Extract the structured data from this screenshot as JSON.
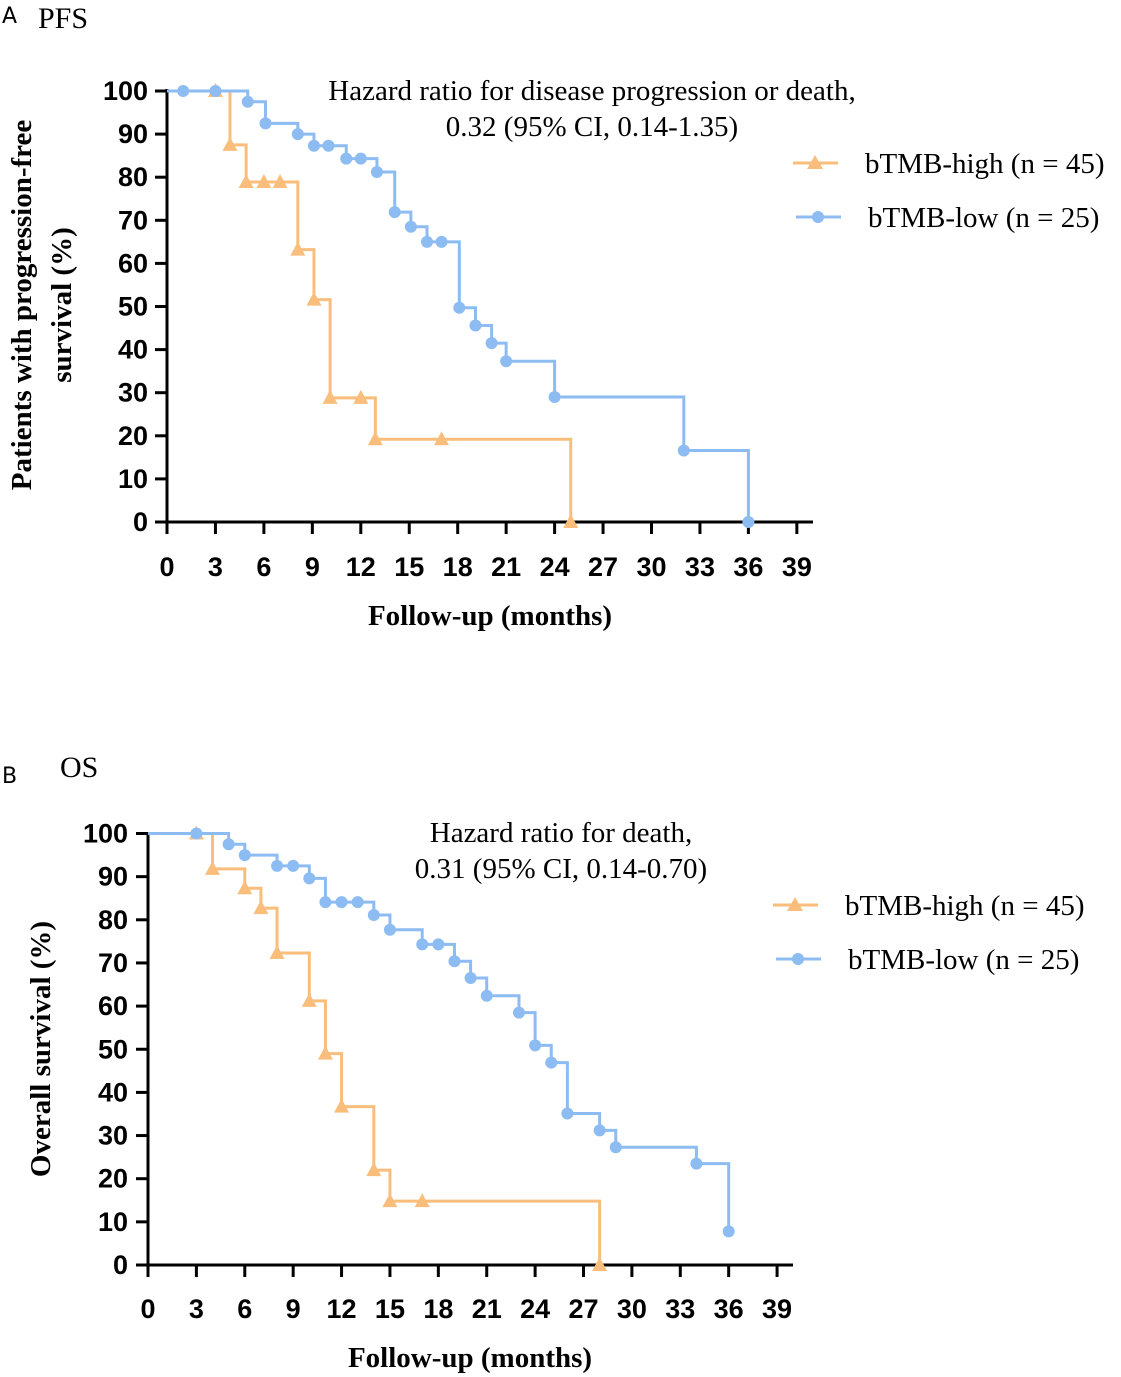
{
  "colors": {
    "high": "#F9BE7C",
    "low": "#8DBCF2",
    "axis": "#000000"
  },
  "chart_data": [
    {
      "type": "line",
      "subtype": "kaplan-meier",
      "panel_letter": "A",
      "title": "PFS",
      "xlabel": "Follow-up (months)",
      "ylabel": [
        "Patients with progression-free",
        "survival (%)"
      ],
      "xlim": [
        0,
        40
      ],
      "ylim": [
        0,
        100
      ],
      "xticks": [
        0,
        3,
        6,
        9,
        12,
        15,
        18,
        21,
        24,
        27,
        30,
        33,
        36,
        39
      ],
      "yticks": [
        0,
        10,
        20,
        30,
        40,
        50,
        60,
        70,
        80,
        90,
        100
      ],
      "annotation": [
        "Hazard ratio for disease progression or death,",
        "0.32 (95% CI, 0.14-1.35)"
      ],
      "series": [
        {
          "name": "bTMB-high (n = 45)",
          "color_key": "high",
          "marker": "triangle",
          "steps": [
            [
              0,
              100
            ],
            [
              3.9,
              87.5
            ],
            [
              4.9,
              78.9
            ],
            [
              8.1,
              63.2
            ],
            [
              9.1,
              51.6
            ],
            [
              10.1,
              28.8
            ],
            [
              12.9,
              19.2
            ],
            [
              25,
              0
            ]
          ],
          "censor": [
            [
              3,
              100
            ],
            [
              3.9,
              87.5
            ],
            [
              4.9,
              78.9
            ],
            [
              6,
              78.9
            ],
            [
              7,
              78.9
            ],
            [
              8.1,
              63.2
            ],
            [
              9.1,
              51.6
            ],
            [
              10.1,
              28.8
            ],
            [
              12,
              28.8
            ],
            [
              12.9,
              19.2
            ],
            [
              17,
              19.2
            ],
            [
              25,
              0
            ]
          ]
        },
        {
          "name": "bTMB-low (n = 25)",
          "color_key": "low",
          "marker": "circle",
          "steps": [
            [
              0,
              100
            ],
            [
              5,
              97.5
            ],
            [
              6.1,
              92.5
            ],
            [
              8.1,
              90
            ],
            [
              9.1,
              87.3
            ],
            [
              11.1,
              84.3
            ],
            [
              13,
              81.2
            ],
            [
              14.1,
              71.9
            ],
            [
              15.1,
              68.5
            ],
            [
              16.1,
              65
            ],
            [
              18.1,
              49.7
            ],
            [
              19.1,
              45.6
            ],
            [
              20.1,
              41.5
            ],
            [
              21,
              37.3
            ],
            [
              24,
              29
            ],
            [
              32,
              16.6
            ],
            [
              36,
              0
            ]
          ],
          "censor": [
            [
              1,
              100
            ],
            [
              3,
              100
            ],
            [
              5,
              97.5
            ],
            [
              6.1,
              92.5
            ],
            [
              8.1,
              90
            ],
            [
              9.1,
              87.3
            ],
            [
              10,
              87.3
            ],
            [
              11.1,
              84.3
            ],
            [
              12,
              84.3
            ],
            [
              13,
              81.2
            ],
            [
              14.1,
              71.9
            ],
            [
              15.1,
              68.5
            ],
            [
              16.1,
              65
            ],
            [
              17,
              65
            ],
            [
              18.1,
              49.7
            ],
            [
              19.1,
              45.6
            ],
            [
              20.1,
              41.5
            ],
            [
              21,
              37.3
            ],
            [
              24,
              29
            ],
            [
              32,
              16.6
            ],
            [
              36,
              0
            ]
          ]
        }
      ]
    },
    {
      "type": "line",
      "subtype": "kaplan-meier",
      "panel_letter": "B",
      "title": "OS",
      "xlabel": "Follow-up (months)",
      "ylabel": [
        "Overall survival (%)"
      ],
      "xlim": [
        0,
        40
      ],
      "ylim": [
        0,
        100
      ],
      "xticks": [
        0,
        3,
        6,
        9,
        12,
        15,
        18,
        21,
        24,
        27,
        30,
        33,
        36,
        39
      ],
      "yticks": [
        0,
        10,
        20,
        30,
        40,
        50,
        60,
        70,
        80,
        90,
        100
      ],
      "annotation": [
        "Hazard ratio for death,",
        "0.31 (95% CI, 0.14-0.70)"
      ],
      "series": [
        {
          "name": "bTMB-high (n = 45)",
          "color_key": "high",
          "marker": "triangle",
          "steps": [
            [
              0,
              100
            ],
            [
              4,
              91.8
            ],
            [
              6,
              87.3
            ],
            [
              7,
              82.7
            ],
            [
              8,
              72.3
            ],
            [
              10,
              61.2
            ],
            [
              11,
              49
            ],
            [
              12,
              36.7
            ],
            [
              14,
              22
            ],
            [
              15,
              14.8
            ],
            [
              28,
              0
            ]
          ],
          "censor": [
            [
              3,
              100
            ],
            [
              4,
              91.8
            ],
            [
              6,
              87.3
            ],
            [
              7,
              82.7
            ],
            [
              8,
              72.3
            ],
            [
              10,
              61.2
            ],
            [
              11,
              49
            ],
            [
              12,
              36.7
            ],
            [
              14,
              22
            ],
            [
              15,
              14.8
            ],
            [
              17,
              14.8
            ],
            [
              28,
              0
            ]
          ]
        },
        {
          "name": "bTMB-low (n = 25)",
          "color_key": "low",
          "marker": "circle",
          "steps": [
            [
              0,
              100
            ],
            [
              5,
              97.5
            ],
            [
              6,
              95
            ],
            [
              8,
              92.5
            ],
            [
              10,
              89.6
            ],
            [
              11,
              84.1
            ],
            [
              14,
              81.1
            ],
            [
              15,
              77.7
            ],
            [
              17,
              74.3
            ],
            [
              19,
              70.4
            ],
            [
              20,
              66.5
            ],
            [
              21,
              62.4
            ],
            [
              23,
              58.5
            ],
            [
              24,
              50.9
            ],
            [
              25,
              46.9
            ],
            [
              26,
              35.1
            ],
            [
              28,
              31.2
            ],
            [
              29,
              27.3
            ],
            [
              34,
              23.5
            ],
            [
              36,
              7.8
            ]
          ],
          "censor": [
            [
              3,
              100
            ],
            [
              5,
              97.5
            ],
            [
              6,
              95
            ],
            [
              8,
              92.5
            ],
            [
              9,
              92.5
            ],
            [
              10,
              89.6
            ],
            [
              11,
              84.1
            ],
            [
              12,
              84.1
            ],
            [
              13,
              84.1
            ],
            [
              14,
              81.1
            ],
            [
              15,
              77.7
            ],
            [
              17,
              74.3
            ],
            [
              18,
              74.3
            ],
            [
              19,
              70.4
            ],
            [
              20,
              66.5
            ],
            [
              21,
              62.4
            ],
            [
              23,
              58.5
            ],
            [
              24,
              50.9
            ],
            [
              25,
              46.9
            ],
            [
              26,
              35.1
            ],
            [
              28,
              31.2
            ],
            [
              29,
              27.3
            ],
            [
              34,
              23.5
            ],
            [
              36,
              7.8
            ]
          ]
        }
      ]
    }
  ]
}
